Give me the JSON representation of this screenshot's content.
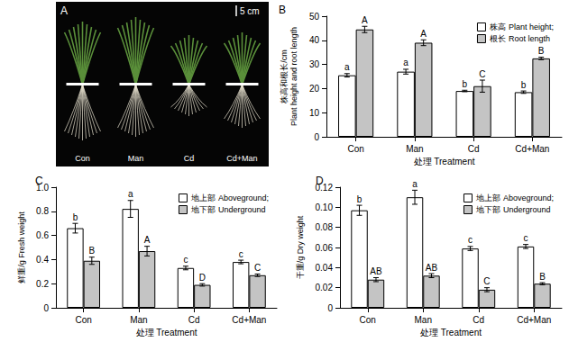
{
  "photo_panel": {
    "panel": "A",
    "scale_bar": "5 cm",
    "labels": [
      "Con",
      "Man",
      "Cd",
      "Cd+Man"
    ]
  },
  "chart_data": [
    {
      "type": "bar",
      "title": "B",
      "xlabel": "处理 Treatment",
      "ylabel": [
        "株高和根长/cm",
        "Plant height and root length"
      ],
      "categories": [
        "Con",
        "Man",
        "Cd",
        "Cd+Man"
      ],
      "series": [
        {
          "name": "株高 Plant height;",
          "color": "#ffffff",
          "values": [
            25.5,
            27,
            19,
            18.5
          ],
          "errors": [
            0.7,
            1,
            0.3,
            0.5
          ],
          "letters": [
            "a",
            "a",
            "b",
            "b"
          ]
        },
        {
          "name": "根长 Root length",
          "color": "#c4c4c4",
          "values": [
            44.5,
            39,
            21,
            32.5
          ],
          "errors": [
            1.3,
            1.2,
            2.5,
            0.5
          ],
          "letters": [
            "A",
            "A",
            "C",
            "B"
          ]
        }
      ],
      "ylim": [
        0,
        50
      ],
      "yticks": [
        0,
        10,
        20,
        30,
        40,
        50
      ],
      "grid": false,
      "legend": "upper right"
    },
    {
      "type": "bar",
      "title": "C",
      "xlabel": "处理 Treatment",
      "ylabel": [
        "鲜重/g Fresh weight"
      ],
      "categories": [
        "Con",
        "Man",
        "Cd",
        "Cd+Man"
      ],
      "series": [
        {
          "name": "地上部 Aboveground;",
          "color": "#ffffff",
          "values": [
            0.66,
            0.82,
            0.33,
            0.38
          ],
          "errors": [
            0.04,
            0.07,
            0.015,
            0.015
          ],
          "letters": [
            "b",
            "a",
            "c",
            "c"
          ]
        },
        {
          "name": "地下部 Underground",
          "color": "#c4c4c4",
          "values": [
            0.39,
            0.47,
            0.19,
            0.27
          ],
          "errors": [
            0.03,
            0.04,
            0.01,
            0.01
          ],
          "letters": [
            "B",
            "A",
            "D",
            "C"
          ]
        }
      ],
      "ylim": [
        0,
        1
      ],
      "yticks": [
        0,
        0.2,
        0.4,
        0.6,
        0.8,
        {
          "value": 1,
          "label": "1.0"
        }
      ],
      "grid": false,
      "legend": "upper right"
    },
    {
      "type": "bar",
      "title": "D",
      "xlabel": "处理 Treatment",
      "ylabel": [
        "干重/g Dry weight"
      ],
      "categories": [
        "Con",
        "Man",
        "Cd",
        "Cd+Man"
      ],
      "series": [
        {
          "name": "地上部 Aboveground;",
          "color": "#ffffff",
          "values": [
            0.097,
            0.11,
            0.059,
            0.061
          ],
          "errors": [
            0.005,
            0.007,
            0.002,
            0.002
          ],
          "letters": [
            "b",
            "a",
            "c",
            "c"
          ]
        },
        {
          "name": "地下部 Underground",
          "color": "#c4c4c4",
          "values": [
            0.028,
            0.032,
            0.018,
            0.024
          ],
          "errors": [
            0.002,
            0.002,
            0.002,
            0.001
          ],
          "letters": [
            "AB",
            "AB",
            "C",
            "B"
          ]
        }
      ],
      "ylim": [
        0,
        0.12
      ],
      "yticks": [
        0,
        0.02,
        0.04,
        0.06,
        0.08,
        {
          "value": 0.1,
          "label": "0.10"
        },
        0.12
      ],
      "grid": false,
      "legend": "upper right"
    }
  ]
}
